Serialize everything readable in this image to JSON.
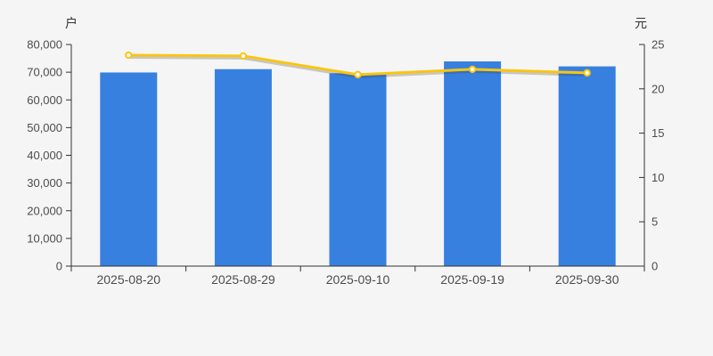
{
  "chart_data": {
    "type": "bar",
    "subtype": "bar-line-combo",
    "categories": [
      "2025-08-20",
      "2025-08-29",
      "2025-09-10",
      "2025-09-19",
      "2025-09-30"
    ],
    "series": [
      {
        "name": "holder-count-bars",
        "type": "bar",
        "axis": "left",
        "unit": "户",
        "values": [
          69900,
          71100,
          69600,
          73900,
          72100
        ]
      },
      {
        "name": "price-line",
        "type": "line",
        "axis": "right",
        "unit": "元",
        "values": [
          23.8,
          23.7,
          21.6,
          22.2,
          21.8
        ]
      }
    ],
    "left_axis": {
      "label": "户",
      "min": 0,
      "max": 80000,
      "step": 10000,
      "tick_labels": [
        "0",
        "10,000",
        "20,000",
        "30,000",
        "40,000",
        "50,000",
        "60,000",
        "70,000",
        "80,000"
      ]
    },
    "right_axis": {
      "label": "元",
      "min": 0,
      "max": 25,
      "step": 5,
      "tick_labels": [
        "0",
        "5",
        "10",
        "15",
        "20",
        "25"
      ]
    },
    "grid": false,
    "legend": false,
    "colors": {
      "bar": "#3780e0",
      "line": "#fac511",
      "marker_fill": "#ffffff",
      "axis_line": "#333333",
      "tick_label": "#4c4c4c",
      "background": "#f5f5f6"
    }
  }
}
